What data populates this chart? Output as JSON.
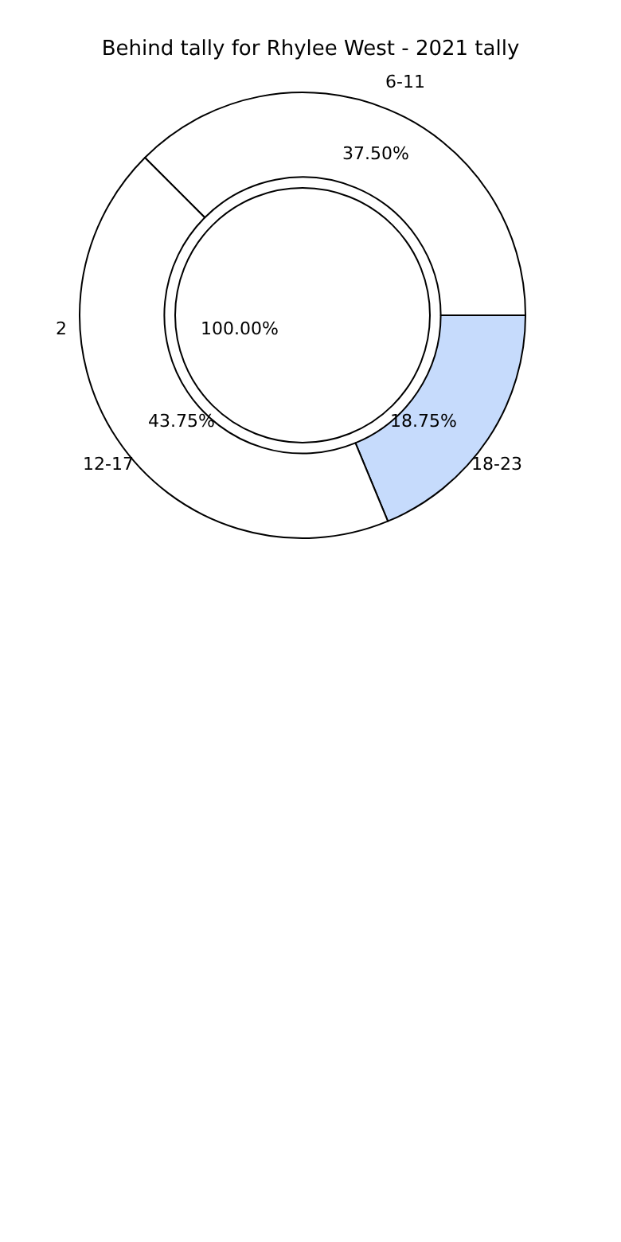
{
  "chart_data": [
    {
      "type": "donut",
      "title": "Behind tally for Rhylee West - 2021 tally",
      "categories": [
        "6-11",
        "18-23",
        "12-17"
      ],
      "values": [
        37.5,
        18.75,
        43.75
      ],
      "colors": [
        "#ffffff",
        "#c6dbfc",
        "#ffffff"
      ],
      "value_labels": [
        "37.50%",
        "18.75%",
        "43.75%"
      ]
    },
    {
      "type": "pie",
      "categories": [
        "2"
      ],
      "values": [
        100
      ],
      "colors": [
        "#ffffff"
      ],
      "value_labels": [
        "100.00%"
      ]
    }
  ]
}
